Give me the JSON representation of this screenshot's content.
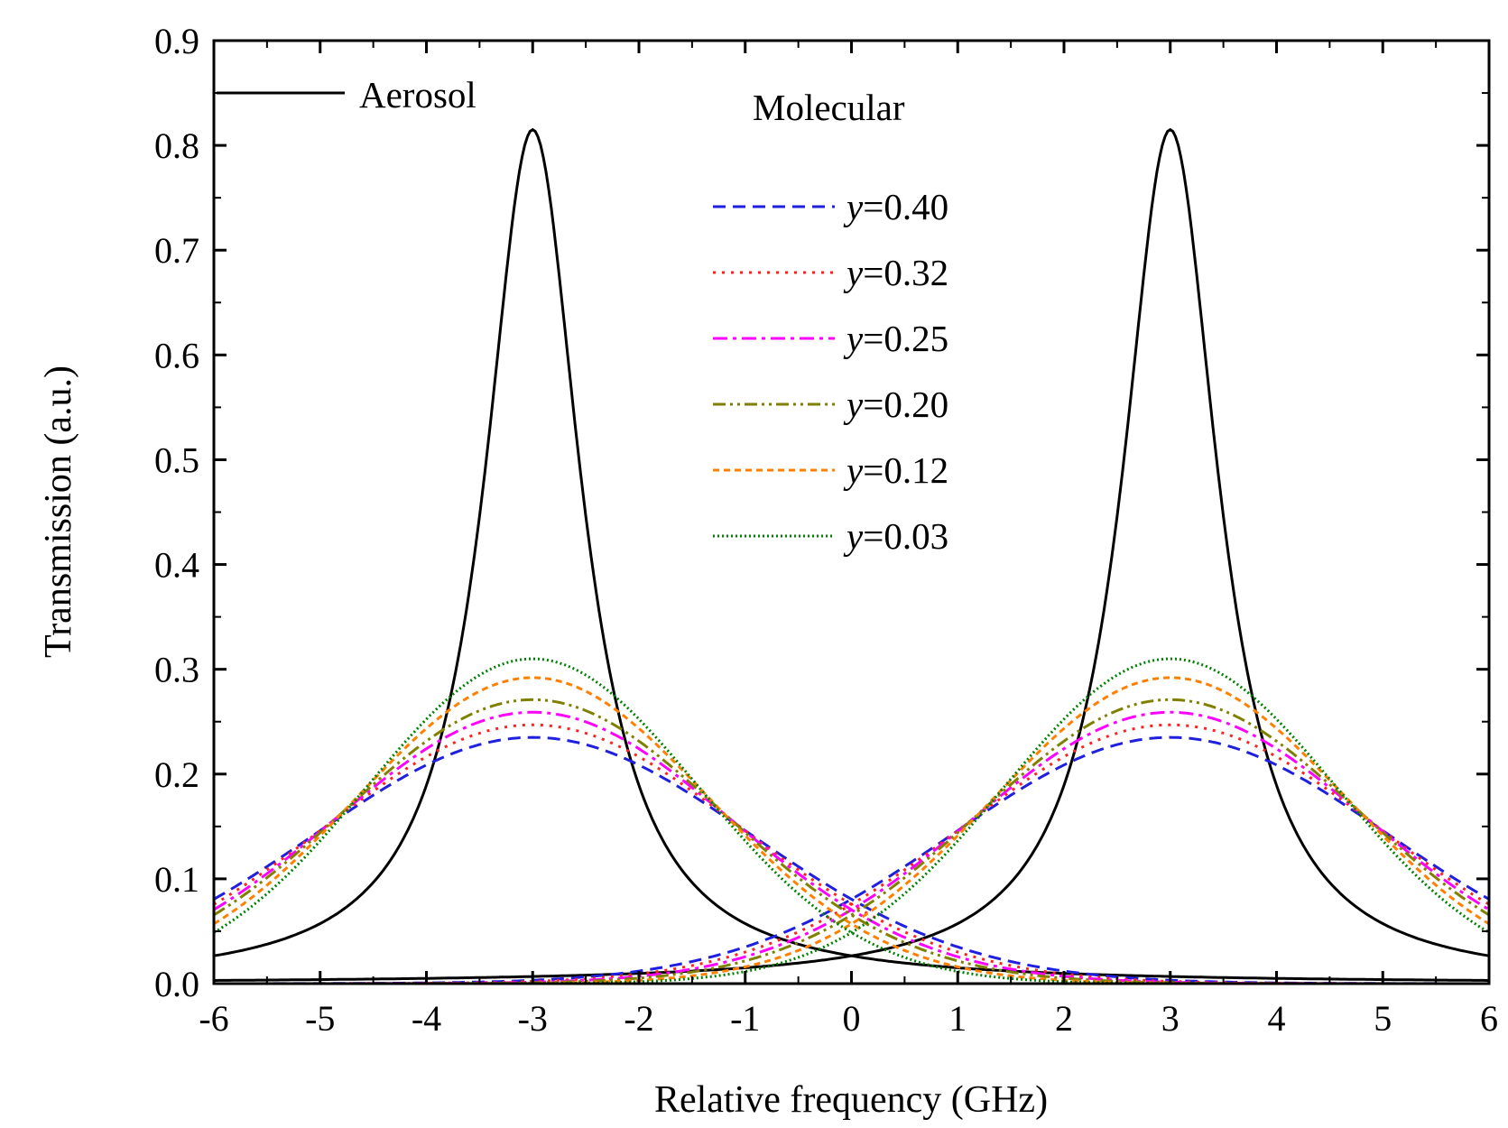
{
  "chart_data": {
    "type": "line",
    "title": "",
    "xlabel": "Relative frequency (GHz)",
    "ylabel": "Transmission (a.u.)",
    "xlim": [
      -6,
      6
    ],
    "ylim": [
      0,
      0.9
    ],
    "xticks": [
      "-6",
      "-5",
      "-4",
      "-3",
      "-2",
      "-1",
      "0",
      "1",
      "2",
      "3",
      "4",
      "5",
      "6"
    ],
    "yticks": [
      "0.0",
      "0.1",
      "0.2",
      "0.3",
      "0.4",
      "0.5",
      "0.6",
      "0.7",
      "0.8",
      "0.9"
    ],
    "grid": false,
    "legend_heading": "Molecular",
    "series": [
      {
        "name": "Aerosol",
        "color": "#000000",
        "dash": "solid",
        "kind": "lorentzian",
        "centers": [
          -3,
          3
        ],
        "peak": 0.815,
        "hwhm": 0.55
      },
      {
        "name_prefix": "y",
        "name_value": "=0.40",
        "color": "#1f1fe0",
        "dash": "dashed",
        "kind": "gaussian",
        "centers": [
          -3,
          3
        ],
        "peak": 0.235,
        "sigma": 2.05
      },
      {
        "name_prefix": "y",
        "name_value": "=0.32",
        "color": "#ff2020",
        "dash": "dotted",
        "kind": "gaussian",
        "centers": [
          -3,
          3
        ],
        "peak": 0.247,
        "sigma": 1.95
      },
      {
        "name_prefix": "y",
        "name_value": "=0.25",
        "color": "#ff00ff",
        "dash": "dash-dot",
        "kind": "gaussian",
        "centers": [
          -3,
          3
        ],
        "peak": 0.259,
        "sigma": 1.86
      },
      {
        "name_prefix": "y",
        "name_value": "=0.20",
        "color": "#808000",
        "dash": "dash-dot-dot",
        "kind": "gaussian",
        "centers": [
          -3,
          3
        ],
        "peak": 0.271,
        "sigma": 1.78
      },
      {
        "name_prefix": "y",
        "name_value": "=0.12",
        "color": "#ff8000",
        "dash": "short-dash",
        "kind": "gaussian",
        "centers": [
          -3,
          3
        ],
        "peak": 0.292,
        "sigma": 1.66
      },
      {
        "name_prefix": "y",
        "name_value": "=0.03",
        "color": "#008000",
        "dash": "short-dot",
        "kind": "gaussian",
        "centers": [
          -3,
          3
        ],
        "peak": 0.31,
        "sigma": 1.56
      }
    ]
  }
}
